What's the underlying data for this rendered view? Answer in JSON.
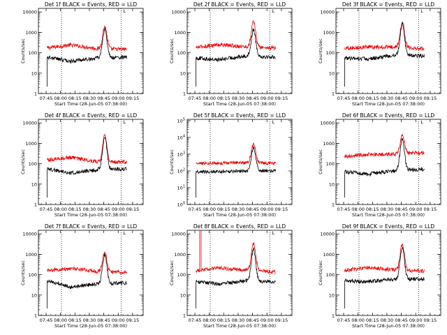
{
  "time_axis": {
    "tick_labels": [
      "07:45",
      "08:00",
      "08:15",
      "08:30",
      "08:45",
      "09:00",
      "09:15"
    ],
    "tick_minutes": [
      465,
      480,
      495,
      510,
      525,
      540,
      555
    ],
    "range_minutes": [
      457,
      566
    ],
    "xlabel": "Start Time (28-Jun-05 07:38:00)"
  },
  "ylabel": "Counts/sec",
  "y_tick_labels_plain": [
    "1",
    "10",
    "100",
    "1000",
    "10000"
  ],
  "y_tick_labels_pow": [
    {
      "base": "10",
      "exp": "0"
    },
    {
      "base": "10",
      "exp": "1"
    },
    {
      "base": "10",
      "exp": "2"
    },
    {
      "base": "10",
      "exp": "3"
    },
    {
      "base": "10",
      "exp": "4"
    },
    {
      "base": "10",
      "exp": "5"
    }
  ],
  "marker_label": "L",
  "colors": {
    "events": "#000000",
    "lld": "#ee0000",
    "axes": "#000000"
  },
  "panels": [
    {
      "title": "Det 1f BLACK = Events, RED = LLD",
      "ylim": [
        1,
        15000
      ],
      "ytick_style": "plain",
      "vlines": [
        481,
        543
      ],
      "red": {
        "start": 170,
        "mid": 240,
        "pre": 150,
        "peak": 1900,
        "end": 150
      },
      "black": {
        "start": 60,
        "mid": 38,
        "pre": 55,
        "peak": 1400,
        "end": 60
      }
    },
    {
      "title": "Det 2f BLACK = Events, RED = LLD",
      "ylim": [
        1,
        15000
      ],
      "ytick_style": "plain",
      "vlines": [
        481,
        543
      ],
      "red": {
        "start": 180,
        "mid": 250,
        "pre": 190,
        "peak": 3200,
        "end": 170
      },
      "black": {
        "start": 55,
        "mid": 45,
        "pre": 70,
        "peak": 1400,
        "end": 60
      }
    },
    {
      "title": "Det 3f BLACK = Events, RED = LLD",
      "ylim": [
        1,
        15000
      ],
      "ytick_style": "plain",
      "vlines": [
        481,
        543
      ],
      "red": {
        "start": 170,
        "mid": 190,
        "pre": 190,
        "peak": 3200,
        "end": 160
      },
      "black": {
        "start": 55,
        "mid": 48,
        "pre": 75,
        "peak": 2600,
        "end": 70
      }
    },
    {
      "title": "Det 4f BLACK = Events, RED = LLD",
      "ylim": [
        1,
        15000
      ],
      "ytick_style": "plain",
      "vlines": [
        481,
        543
      ],
      "red": {
        "start": 150,
        "mid": 200,
        "pre": 120,
        "peak": 2500,
        "end": 120
      },
      "black": {
        "start": 55,
        "mid": 35,
        "pre": 50,
        "peak": 2000,
        "end": 55
      }
    },
    {
      "title": "Det 5f BLACK = Events, RED = LLD",
      "ylim": [
        1,
        120000
      ],
      "ytick_style": "pow",
      "vlines": [
        481,
        543
      ],
      "red": {
        "start": 280,
        "mid": 290,
        "pre": 320,
        "peak": 4000,
        "end": 280
      },
      "black": {
        "start": 90,
        "mid": 90,
        "pre": 100,
        "peak": 2600,
        "end": 100
      }
    },
    {
      "title": "Det 6f BLACK = Events, RED = LLD",
      "ylim": [
        1,
        15000
      ],
      "ytick_style": "plain",
      "vlines": [
        481,
        543
      ],
      "red": {
        "start": 230,
        "mid": 280,
        "pre": 300,
        "peak": 2500,
        "end": 350
      },
      "black": {
        "start": 40,
        "mid": 30,
        "pre": 45,
        "peak": 1600,
        "end": 55
      }
    },
    {
      "title": "Det 7f BLACK = Events, RED = LLD",
      "ylim": [
        1,
        15000
      ],
      "ytick_style": "plain",
      "vlines": [
        481,
        543
      ],
      "red": {
        "start": 160,
        "mid": 200,
        "pre": 140,
        "peak": 1200,
        "end": 130
      },
      "black": {
        "start": 50,
        "mid": 25,
        "pre": 35,
        "peak": 900,
        "end": 40
      }
    },
    {
      "title": "Det 8f BLACK = Events, RED = LLD",
      "ylim": [
        1,
        15000
      ],
      "ytick_style": "plain",
      "vlines": [
        481,
        543
      ],
      "red": {
        "start": 150,
        "mid": 210,
        "pre": 170,
        "peak": 3500,
        "end": 130
      },
      "black": {
        "start": 45,
        "mid": 35,
        "pre": 50,
        "peak": 1800,
        "end": 45
      }
    },
    {
      "title": "Det 9f BLACK = Events, RED = LLD",
      "ylim": [
        1,
        15000
      ],
      "ytick_style": "plain",
      "vlines": [
        481,
        543
      ],
      "red": {
        "start": 160,
        "mid": 220,
        "pre": 170,
        "peak": 3000,
        "end": 150
      },
      "black": {
        "start": 50,
        "mid": 45,
        "pre": 60,
        "peak": 2300,
        "end": 60
      }
    }
  ],
  "chart_data": {
    "type": "line",
    "grid": false,
    "legend": "in title",
    "series_names": [
      "Events",
      "LLD"
    ],
    "description_units": {
      "x": "time of day (hh:mm)",
      "y": "Counts/sec (log scale)"
    }
  }
}
